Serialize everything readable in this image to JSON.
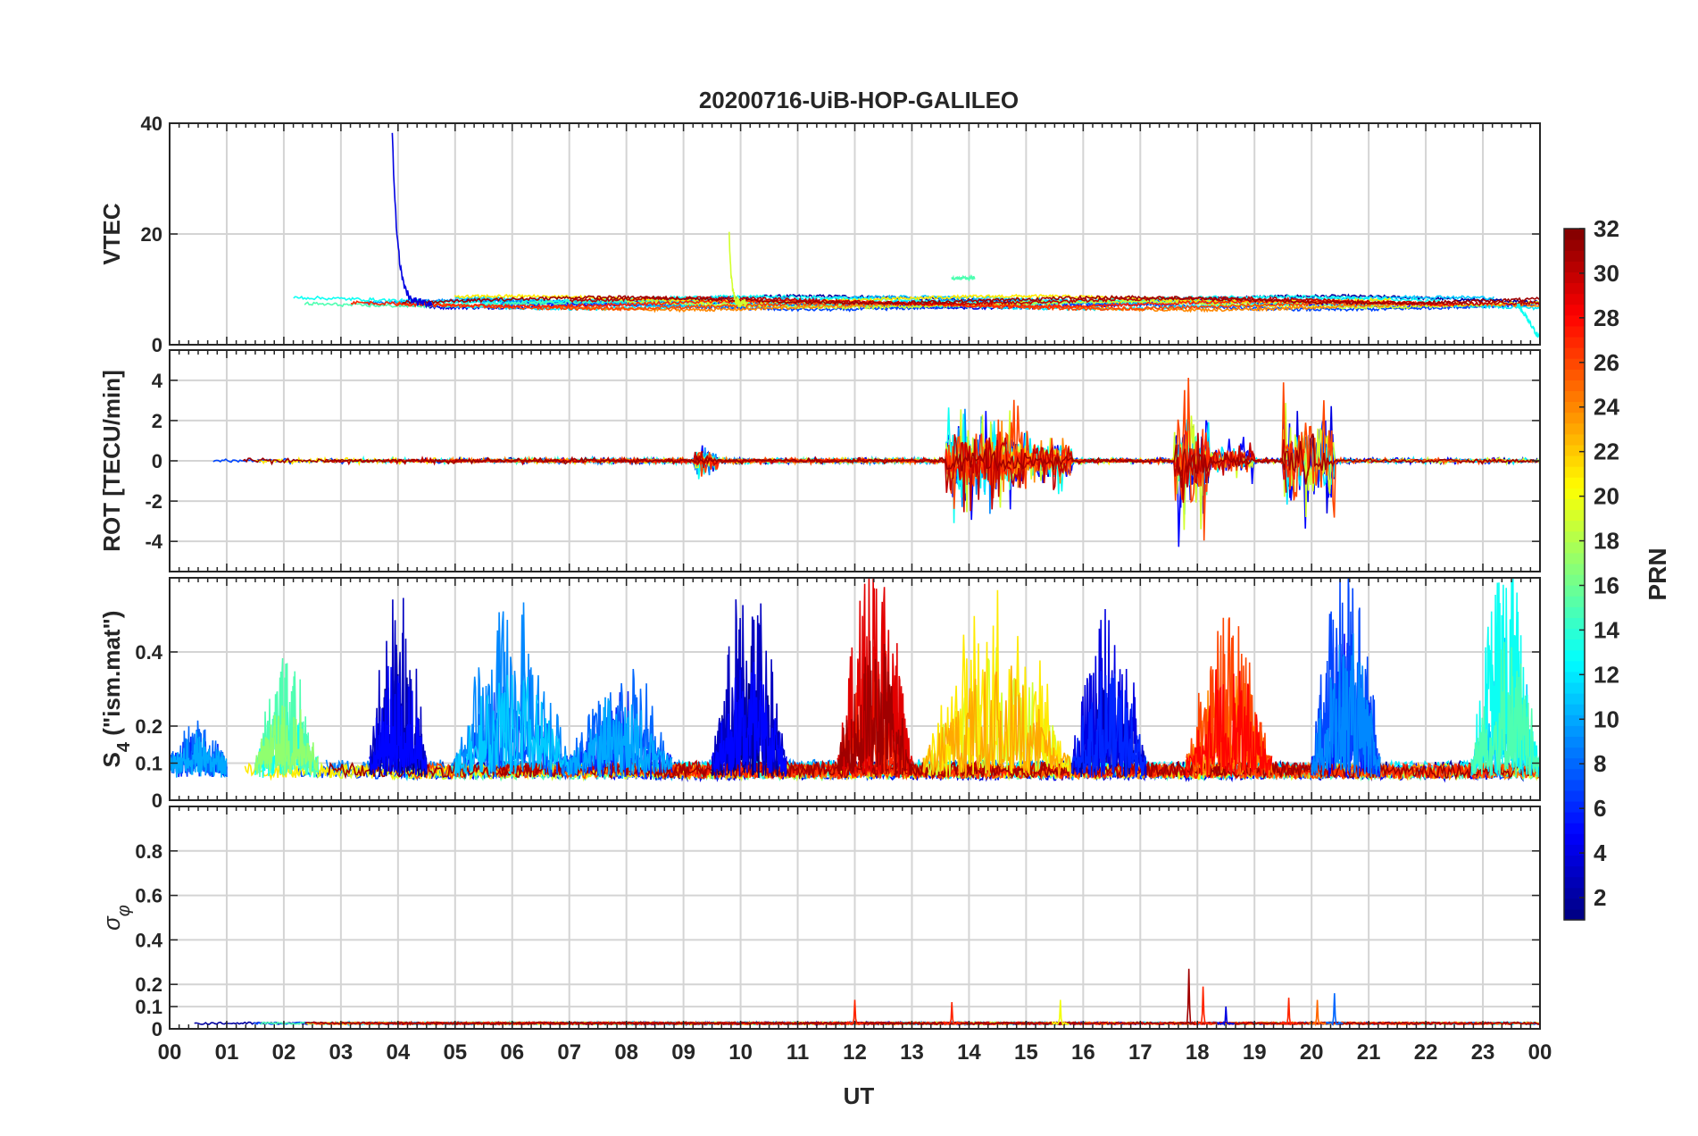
{
  "chart_data": {
    "type": "line",
    "title": "20200716-UiB-HOP-GALILEO",
    "xlabel": "UT",
    "x_tick_labels": [
      "00",
      "01",
      "02",
      "03",
      "04",
      "05",
      "06",
      "07",
      "08",
      "09",
      "10",
      "11",
      "12",
      "13",
      "14",
      "15",
      "16",
      "17",
      "18",
      "19",
      "20",
      "21",
      "22",
      "23",
      "00"
    ],
    "xlim_hours": [
      0,
      24
    ],
    "panels": [
      {
        "id": "vtec",
        "ylabel": "VTEC",
        "ylim": [
          0,
          40
        ],
        "yticks": [
          0,
          20,
          40
        ],
        "ytick_labels": [
          "0",
          "20",
          "40"
        ],
        "base": 7.5,
        "noise": 0.6,
        "events": [
          {
            "prn": 4,
            "t": [
              3.9,
              4.6
            ],
            "peak": 38,
            "kind": "decay"
          },
          {
            "prn": 19,
            "t": [
              9.8,
              10.1
            ],
            "peak": 20,
            "kind": "decay"
          },
          {
            "prn": 15,
            "t": [
              13.7,
              14.1
            ],
            "peak": 12,
            "kind": "flat"
          },
          {
            "prn": 13,
            "t": [
              23.6,
              24.0
            ],
            "peak": 1,
            "kind": "drop"
          }
        ]
      },
      {
        "id": "rot",
        "ylabel": "ROT [TECU/min]",
        "ylim": [
          -5.5,
          5.5
        ],
        "yticks": [
          -4,
          -2,
          0,
          2,
          4
        ],
        "ytick_labels": [
          "-4",
          "-2",
          "0",
          "2",
          "4"
        ],
        "base": 0,
        "noise": 0.15,
        "active_windows": [
          {
            "t": [
              9.2,
              9.6
            ],
            "amp": 1.0
          },
          {
            "t": [
              13.6,
              15.0
            ],
            "amp": 3.2
          },
          {
            "t": [
              15.0,
              15.8
            ],
            "amp": 1.8
          },
          {
            "t": [
              17.6,
              18.2
            ],
            "amp": 4.6
          },
          {
            "t": [
              18.2,
              19.0
            ],
            "amp": 1.2
          },
          {
            "t": [
              19.5,
              20.4
            ],
            "amp": 4.5
          }
        ]
      },
      {
        "id": "s4",
        "ylabel": "S4 (\"ism.mat\")",
        "ylabel_main": "S",
        "ylabel_sub": "4",
        "ylabel_rest": " (\"ism.mat\")",
        "ylim": [
          0,
          0.6
        ],
        "yticks": [
          0,
          0.1,
          0.2,
          0.4
        ],
        "ytick_labels": [
          "0",
          "0.1",
          "0.2",
          "0.4"
        ],
        "base": 0.07,
        "noise": 0.08,
        "bursts": [
          {
            "t": [
              0.0,
              1.0
            ],
            "amp": 0.12,
            "prn": 8
          },
          {
            "t": [
              1.5,
              2.6
            ],
            "amp": 0.3,
            "prn": 15
          },
          {
            "t": [
              3.5,
              4.5
            ],
            "amp": 0.5,
            "prn": 3
          },
          {
            "t": [
              5.0,
              7.0
            ],
            "amp": 0.45,
            "prn": 9
          },
          {
            "t": [
              7.0,
              8.8
            ],
            "amp": 0.3,
            "prn": 8
          },
          {
            "t": [
              9.5,
              10.8
            ],
            "amp": 0.55,
            "prn": 3
          },
          {
            "t": [
              11.7,
              13.0
            ],
            "amp": 0.6,
            "prn": 29
          },
          {
            "t": [
              13.2,
              15.8
            ],
            "amp": 0.5,
            "prn": 21
          },
          {
            "t": [
              15.8,
              17.1
            ],
            "amp": 0.45,
            "prn": 4
          },
          {
            "t": [
              17.8,
              19.3
            ],
            "amp": 0.45,
            "prn": 26
          },
          {
            "t": [
              20.0,
              21.2
            ],
            "amp": 0.6,
            "prn": 7
          },
          {
            "t": [
              22.8,
              24.0
            ],
            "amp": 0.6,
            "prn": 13
          }
        ]
      },
      {
        "id": "sigma_phi",
        "ylabel": "σ φ",
        "ylabel_main": "σ",
        "ylabel_sub": "φ",
        "ylim": [
          0,
          1.0
        ],
        "yticks": [
          0,
          0.1,
          0.2,
          0.4,
          0.6,
          0.8
        ],
        "ytick_labels": [
          "0",
          "0.1",
          "0.2",
          "0.4",
          "0.6",
          "0.8"
        ],
        "base": 0.02,
        "noise": 0.01,
        "spikes": [
          {
            "t": 12.0,
            "v": 0.13,
            "prn": 27
          },
          {
            "t": 13.7,
            "v": 0.12,
            "prn": 27
          },
          {
            "t": 15.6,
            "v": 0.13,
            "prn": 20
          },
          {
            "t": 17.85,
            "v": 0.27,
            "prn": 31
          },
          {
            "t": 18.1,
            "v": 0.19,
            "prn": 27
          },
          {
            "t": 18.5,
            "v": 0.1,
            "prn": 4
          },
          {
            "t": 19.6,
            "v": 0.14,
            "prn": 27
          },
          {
            "t": 20.1,
            "v": 0.13,
            "prn": 25
          },
          {
            "t": 20.4,
            "v": 0.16,
            "prn": 8
          }
        ]
      }
    ],
    "series_prns": [
      2,
      4,
      5,
      7,
      9,
      11,
      12,
      13,
      15,
      19,
      21,
      24,
      26,
      27,
      30,
      31
    ],
    "colorbar": {
      "label": "PRN",
      "range": [
        1,
        32
      ],
      "colormap": "jet",
      "ticks": [
        2,
        4,
        6,
        8,
        10,
        12,
        14,
        16,
        18,
        20,
        22,
        24,
        26,
        28,
        30,
        32
      ],
      "tick_labels": [
        "2",
        "4",
        "6",
        "8",
        "10",
        "12",
        "14",
        "16",
        "18",
        "20",
        "22",
        "24",
        "26",
        "28",
        "30",
        "32"
      ]
    }
  }
}
